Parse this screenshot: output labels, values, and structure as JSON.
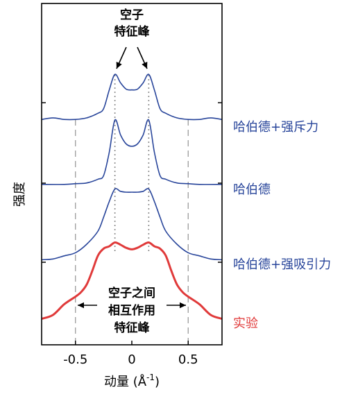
{
  "chart_data": {
    "type": "line",
    "xlabel_main": "动量 (Å",
    "xlabel_sup": "-1",
    "xlabel_close": ")",
    "ylabel": "强度",
    "xlim": [
      -0.8,
      0.8
    ],
    "xticks": [
      "-0.5",
      "0",
      "0.5"
    ],
    "xtick_values": [
      -0.5,
      0,
      0.5
    ],
    "grid": false,
    "vlines_dashed": [
      -0.5,
      0.5
    ],
    "vlines_dotted": [
      -0.15,
      0.15
    ],
    "series": [
      {
        "name": "哈伯德+强斥力",
        "color": "#27449a",
        "points": [
          [
            -0.8,
            0.07
          ],
          [
            -0.7,
            0.09
          ],
          [
            -0.6,
            0.07
          ],
          [
            -0.5,
            0.07
          ],
          [
            -0.4,
            0.09
          ],
          [
            -0.3,
            0.15
          ],
          [
            -0.25,
            0.21
          ],
          [
            -0.2,
            0.45
          ],
          [
            -0.15,
            0.65
          ],
          [
            -0.1,
            0.54
          ],
          [
            -0.05,
            0.46
          ],
          [
            0,
            0.45
          ],
          [
            0.05,
            0.46
          ],
          [
            0.1,
            0.54
          ],
          [
            0.15,
            0.65
          ],
          [
            0.2,
            0.45
          ],
          [
            0.25,
            0.21
          ],
          [
            0.3,
            0.15
          ],
          [
            0.4,
            0.09
          ],
          [
            0.5,
            0.07
          ],
          [
            0.6,
            0.07
          ],
          [
            0.7,
            0.09
          ],
          [
            0.8,
            0.07
          ]
        ]
      },
      {
        "name": "哈伯德",
        "color": "#27449a",
        "points": [
          [
            -0.8,
            0.02
          ],
          [
            -0.6,
            0.02
          ],
          [
            -0.5,
            0.03
          ],
          [
            -0.4,
            0.04
          ],
          [
            -0.3,
            0.09
          ],
          [
            -0.25,
            0.14
          ],
          [
            -0.2,
            0.45
          ],
          [
            -0.15,
            0.88
          ],
          [
            -0.1,
            0.68
          ],
          [
            -0.05,
            0.56
          ],
          [
            0,
            0.53
          ],
          [
            0.05,
            0.56
          ],
          [
            0.1,
            0.68
          ],
          [
            0.15,
            0.88
          ],
          [
            0.2,
            0.45
          ],
          [
            0.25,
            0.14
          ],
          [
            0.3,
            0.09
          ],
          [
            0.4,
            0.04
          ],
          [
            0.5,
            0.03
          ],
          [
            0.6,
            0.02
          ],
          [
            0.8,
            0.02
          ]
        ]
      },
      {
        "name": "哈伯德+强吸引力",
        "color": "#27449a",
        "points": [
          [
            -0.8,
            0.05
          ],
          [
            -0.7,
            0.06
          ],
          [
            -0.6,
            0.1
          ],
          [
            -0.5,
            0.14
          ],
          [
            -0.4,
            0.25
          ],
          [
            -0.3,
            0.42
          ],
          [
            -0.25,
            0.6
          ],
          [
            -0.2,
            0.8
          ],
          [
            -0.15,
            0.96
          ],
          [
            -0.1,
            0.93
          ],
          [
            -0.05,
            0.92
          ],
          [
            0,
            0.92
          ],
          [
            0.05,
            0.92
          ],
          [
            0.1,
            0.93
          ],
          [
            0.15,
            0.96
          ],
          [
            0.2,
            0.8
          ],
          [
            0.25,
            0.6
          ],
          [
            0.3,
            0.42
          ],
          [
            0.4,
            0.25
          ],
          [
            0.5,
            0.14
          ],
          [
            0.6,
            0.1
          ],
          [
            0.7,
            0.06
          ],
          [
            0.8,
            0.05
          ]
        ]
      },
      {
        "name": "实验",
        "color": "#e03a3a",
        "points": [
          [
            -0.8,
            0.05
          ],
          [
            -0.7,
            0.1
          ],
          [
            -0.6,
            0.24
          ],
          [
            -0.5,
            0.34
          ],
          [
            -0.45,
            0.4
          ],
          [
            -0.4,
            0.5
          ],
          [
            -0.35,
            0.68
          ],
          [
            -0.3,
            0.88
          ],
          [
            -0.25,
            0.97
          ],
          [
            -0.2,
            1.0
          ],
          [
            -0.15,
            1.05
          ],
          [
            -0.1,
            1.02
          ],
          [
            -0.05,
            0.98
          ],
          [
            0,
            0.96
          ],
          [
            0.05,
            0.98
          ],
          [
            0.1,
            1.02
          ],
          [
            0.15,
            1.05
          ],
          [
            0.2,
            1.0
          ],
          [
            0.25,
            0.97
          ],
          [
            0.3,
            0.88
          ],
          [
            0.35,
            0.68
          ],
          [
            0.4,
            0.5
          ],
          [
            0.45,
            0.4
          ],
          [
            0.5,
            0.34
          ],
          [
            0.6,
            0.24
          ],
          [
            0.7,
            0.1
          ],
          [
            0.8,
            0.05
          ]
        ]
      }
    ],
    "annotations": {
      "top_line1": "空子",
      "top_line2": "特征峰",
      "bottom_line1": "空子之间",
      "bottom_line2": "相互作用",
      "bottom_line3": "特征峰"
    }
  }
}
